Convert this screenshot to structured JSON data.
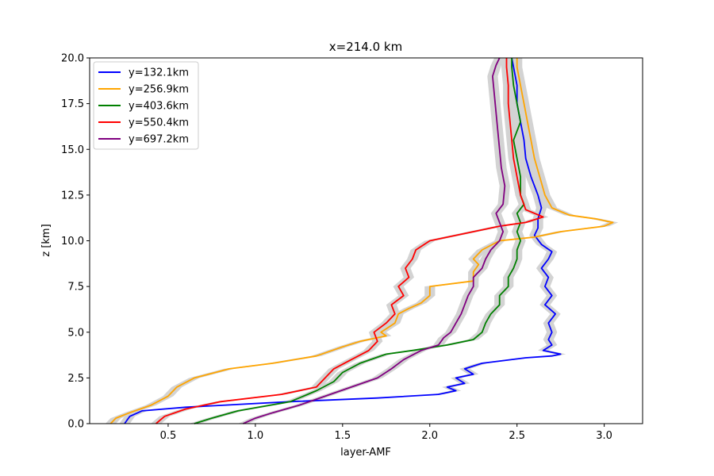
{
  "chart_data": {
    "type": "line",
    "title": "x=214.0 km",
    "xlabel": "layer-AMF",
    "ylabel": "z [km]",
    "xlim": [
      0.05,
      3.22
    ],
    "ylim": [
      0.0,
      20.0
    ],
    "xticks": [
      0.5,
      1.0,
      1.5,
      2.0,
      2.5,
      3.0
    ],
    "xtick_labels": [
      "0.5",
      "1.0",
      "1.5",
      "2.0",
      "2.5",
      "3.0"
    ],
    "yticks": [
      0.0,
      2.5,
      5.0,
      7.5,
      10.0,
      12.5,
      15.0,
      17.5,
      20.0
    ],
    "ytick_labels": [
      "0.0",
      "2.5",
      "5.0",
      "7.5",
      "10.0",
      "12.5",
      "15.0",
      "17.5",
      "20.0"
    ],
    "grid": false,
    "legend_position": "top-left",
    "uncertainty_band_color": "#d3d3d3",
    "series": [
      {
        "name": "y=132.1km",
        "color": "#0000ff",
        "points": [
          [
            0.25,
            0.0
          ],
          [
            0.28,
            0.4
          ],
          [
            0.35,
            0.7
          ],
          [
            0.6,
            0.9
          ],
          [
            1.2,
            1.2
          ],
          [
            1.7,
            1.4
          ],
          [
            2.05,
            1.6
          ],
          [
            2.15,
            1.8
          ],
          [
            2.1,
            2.0
          ],
          [
            2.2,
            2.2
          ],
          [
            2.15,
            2.5
          ],
          [
            2.25,
            2.7
          ],
          [
            2.2,
            3.0
          ],
          [
            2.3,
            3.3
          ],
          [
            2.55,
            3.6
          ],
          [
            2.7,
            3.7
          ],
          [
            2.75,
            3.8
          ],
          [
            2.65,
            4.0
          ],
          [
            2.7,
            4.3
          ],
          [
            2.68,
            4.6
          ],
          [
            2.7,
            5.0
          ],
          [
            2.68,
            5.5
          ],
          [
            2.72,
            6.0
          ],
          [
            2.66,
            6.5
          ],
          [
            2.7,
            7.0
          ],
          [
            2.66,
            7.5
          ],
          [
            2.68,
            8.0
          ],
          [
            2.64,
            8.5
          ],
          [
            2.68,
            9.0
          ],
          [
            2.7,
            9.4
          ],
          [
            2.64,
            9.8
          ],
          [
            2.6,
            10.3
          ],
          [
            2.62,
            10.7
          ],
          [
            2.62,
            11.2
          ],
          [
            2.64,
            11.8
          ],
          [
            2.62,
            12.5
          ],
          [
            2.58,
            13.5
          ],
          [
            2.55,
            14.5
          ],
          [
            2.54,
            15.5
          ],
          [
            2.52,
            16.5
          ],
          [
            2.5,
            17.5
          ],
          [
            2.5,
            18.5
          ],
          [
            2.48,
            19.5
          ],
          [
            2.47,
            20.0
          ]
        ],
        "band_width": 0.03
      },
      {
        "name": "y=256.9km",
        "color": "#ffa500",
        "points": [
          [
            0.17,
            0.0
          ],
          [
            0.2,
            0.3
          ],
          [
            0.28,
            0.6
          ],
          [
            0.4,
            1.0
          ],
          [
            0.5,
            1.5
          ],
          [
            0.55,
            2.0
          ],
          [
            0.65,
            2.5
          ],
          [
            0.85,
            3.0
          ],
          [
            1.1,
            3.3
          ],
          [
            1.35,
            3.7
          ],
          [
            1.5,
            4.2
          ],
          [
            1.6,
            4.5
          ],
          [
            1.75,
            4.8
          ],
          [
            1.72,
            5.0
          ],
          [
            1.8,
            5.5
          ],
          [
            1.82,
            6.0
          ],
          [
            1.88,
            6.3
          ],
          [
            1.95,
            6.6
          ],
          [
            2.0,
            7.0
          ],
          [
            2.0,
            7.5
          ],
          [
            2.25,
            7.8
          ],
          [
            2.25,
            8.3
          ],
          [
            2.28,
            8.7
          ],
          [
            2.25,
            9.0
          ],
          [
            2.3,
            9.5
          ],
          [
            2.4,
            10.0
          ],
          [
            2.6,
            10.2
          ],
          [
            2.75,
            10.5
          ],
          [
            3.0,
            10.8
          ],
          [
            3.05,
            11.0
          ],
          [
            2.95,
            11.2
          ],
          [
            2.8,
            11.4
          ],
          [
            2.7,
            11.8
          ],
          [
            2.66,
            12.5
          ],
          [
            2.63,
            13.5
          ],
          [
            2.6,
            14.5
          ],
          [
            2.58,
            15.5
          ],
          [
            2.56,
            16.5
          ],
          [
            2.54,
            17.5
          ],
          [
            2.52,
            18.5
          ],
          [
            2.5,
            19.5
          ],
          [
            2.5,
            20.0
          ]
        ],
        "band_width": 0.03
      },
      {
        "name": "y=403.6km",
        "color": "#008000",
        "points": [
          [
            0.65,
            0.0
          ],
          [
            0.75,
            0.3
          ],
          [
            0.9,
            0.7
          ],
          [
            1.2,
            1.2
          ],
          [
            1.35,
            1.8
          ],
          [
            1.45,
            2.3
          ],
          [
            1.5,
            2.8
          ],
          [
            1.6,
            3.3
          ],
          [
            1.75,
            3.8
          ],
          [
            1.9,
            4.0
          ],
          [
            2.1,
            4.3
          ],
          [
            2.25,
            4.6
          ],
          [
            2.3,
            5.0
          ],
          [
            2.32,
            5.5
          ],
          [
            2.35,
            6.0
          ],
          [
            2.4,
            6.5
          ],
          [
            2.4,
            7.0
          ],
          [
            2.45,
            7.5
          ],
          [
            2.45,
            8.0
          ],
          [
            2.48,
            8.5
          ],
          [
            2.5,
            9.0
          ],
          [
            2.5,
            9.5
          ],
          [
            2.52,
            10.0
          ],
          [
            2.5,
            10.5
          ],
          [
            2.52,
            11.0
          ],
          [
            2.5,
            11.5
          ],
          [
            2.54,
            12.0
          ],
          [
            2.52,
            12.5
          ],
          [
            2.52,
            13.5
          ],
          [
            2.5,
            14.5
          ],
          [
            2.48,
            15.5
          ],
          [
            2.52,
            16.5
          ],
          [
            2.5,
            17.5
          ],
          [
            2.48,
            18.5
          ],
          [
            2.47,
            19.5
          ],
          [
            2.47,
            20.0
          ]
        ],
        "band_width": 0.03
      },
      {
        "name": "y=550.4km",
        "color": "#ff0000",
        "points": [
          [
            0.43,
            0.0
          ],
          [
            0.48,
            0.4
          ],
          [
            0.6,
            0.8
          ],
          [
            0.8,
            1.2
          ],
          [
            1.15,
            1.6
          ],
          [
            1.35,
            2.0
          ],
          [
            1.4,
            2.5
          ],
          [
            1.45,
            3.0
          ],
          [
            1.55,
            3.5
          ],
          [
            1.65,
            4.0
          ],
          [
            1.7,
            4.5
          ],
          [
            1.68,
            5.0
          ],
          [
            1.75,
            5.5
          ],
          [
            1.8,
            6.0
          ],
          [
            1.78,
            6.5
          ],
          [
            1.85,
            7.0
          ],
          [
            1.82,
            7.5
          ],
          [
            1.88,
            8.0
          ],
          [
            1.86,
            8.5
          ],
          [
            1.9,
            9.0
          ],
          [
            1.92,
            9.5
          ],
          [
            2.0,
            10.0
          ],
          [
            2.15,
            10.3
          ],
          [
            2.4,
            10.8
          ],
          [
            2.55,
            11.0
          ],
          [
            2.65,
            11.3
          ],
          [
            2.55,
            11.7
          ],
          [
            2.52,
            12.5
          ],
          [
            2.5,
            13.5
          ],
          [
            2.48,
            14.5
          ],
          [
            2.47,
            15.5
          ],
          [
            2.46,
            16.5
          ],
          [
            2.45,
            17.5
          ],
          [
            2.45,
            18.5
          ],
          [
            2.44,
            19.5
          ],
          [
            2.44,
            20.0
          ]
        ],
        "band_width": 0.03
      },
      {
        "name": "y=697.2km",
        "color": "#800080",
        "points": [
          [
            0.93,
            0.0
          ],
          [
            1.0,
            0.3
          ],
          [
            1.1,
            0.6
          ],
          [
            1.25,
            1.0
          ],
          [
            1.4,
            1.5
          ],
          [
            1.55,
            2.0
          ],
          [
            1.7,
            2.5
          ],
          [
            1.78,
            3.0
          ],
          [
            1.85,
            3.5
          ],
          [
            1.95,
            4.0
          ],
          [
            2.05,
            4.3
          ],
          [
            2.08,
            4.7
          ],
          [
            2.12,
            5.0
          ],
          [
            2.15,
            5.5
          ],
          [
            2.18,
            6.0
          ],
          [
            2.2,
            6.5
          ],
          [
            2.22,
            7.0
          ],
          [
            2.25,
            7.5
          ],
          [
            2.25,
            8.0
          ],
          [
            2.3,
            8.5
          ],
          [
            2.32,
            9.0
          ],
          [
            2.35,
            9.5
          ],
          [
            2.4,
            10.0
          ],
          [
            2.42,
            10.5
          ],
          [
            2.4,
            11.0
          ],
          [
            2.38,
            11.5
          ],
          [
            2.42,
            12.0
          ],
          [
            2.43,
            13.0
          ],
          [
            2.41,
            14.0
          ],
          [
            2.4,
            15.0
          ],
          [
            2.39,
            16.0
          ],
          [
            2.38,
            17.0
          ],
          [
            2.37,
            18.0
          ],
          [
            2.36,
            19.0
          ],
          [
            2.38,
            19.6
          ],
          [
            2.4,
            20.0
          ]
        ],
        "band_width": 0.03
      }
    ]
  }
}
